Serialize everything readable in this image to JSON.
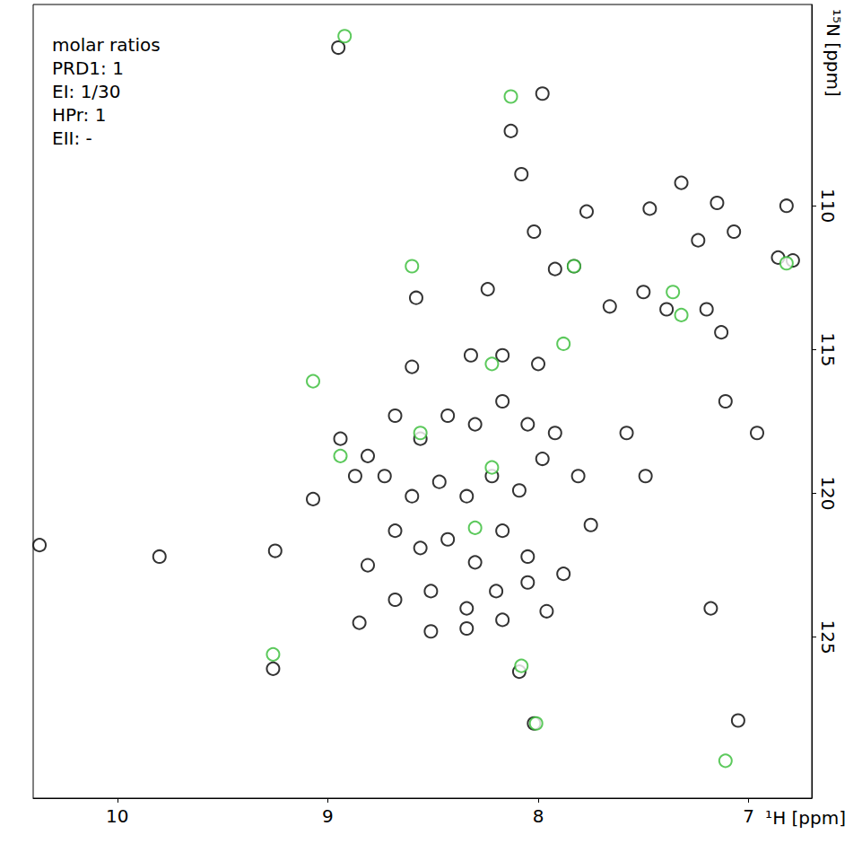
{
  "chart_data": {
    "type": "scatter",
    "annotations": [
      "molar ratios",
      "PRD1: 1",
      "EI: 1/30",
      "HPr: 1",
      "EII: -"
    ],
    "x_label": "¹H [ppm]",
    "y_label": "¹⁵N [ppm]",
    "xlim": [
      10.4,
      6.7
    ],
    "xticks": [
      10,
      9,
      8,
      7
    ],
    "ylim": [
      130.6,
      103
    ],
    "yticks": [
      110,
      115,
      120,
      125
    ],
    "grid": false,
    "marker": "circle",
    "series": [
      {
        "color": "#000000",
        "x": [
          8.95,
          7.98,
          8.13,
          8.08,
          8.02,
          8.24,
          7.92,
          7.77,
          7.47,
          7.32,
          7.15,
          7.24,
          7.07,
          6.86,
          7.5,
          7.39,
          7.66,
          7.83,
          6.82,
          6.79,
          7.2,
          7.13,
          8.58,
          8.6,
          8.32,
          8.17,
          8.0,
          8.94,
          8.87,
          8.81,
          8.68,
          8.56,
          8.43,
          8.3,
          8.17,
          8.05,
          7.98,
          8.73,
          8.6,
          8.47,
          8.34,
          8.22,
          8.09,
          8.68,
          8.56,
          8.43,
          8.3,
          8.17,
          8.05,
          8.81,
          8.68,
          8.51,
          8.34,
          8.2,
          8.05,
          8.51,
          8.34,
          8.17,
          8.85,
          9.07,
          9.25,
          9.8,
          10.37,
          7.92,
          7.81,
          7.75,
          7.88,
          7.96,
          7.58,
          7.49,
          7.11,
          6.96,
          7.18,
          9.26,
          8.09,
          8.02,
          7.05
        ],
        "y": [
          104.5,
          106.1,
          107.4,
          108.9,
          110.9,
          112.9,
          112.2,
          110.2,
          110.1,
          109.2,
          109.9,
          111.2,
          110.9,
          111.8,
          113.0,
          113.6,
          113.5,
          112.1,
          110.0,
          111.9,
          113.6,
          114.4,
          113.2,
          115.6,
          115.2,
          115.2,
          115.5,
          118.1,
          119.4,
          118.7,
          117.3,
          118.1,
          117.3,
          117.6,
          116.8,
          117.6,
          118.8,
          119.4,
          120.1,
          119.6,
          120.1,
          119.4,
          119.9,
          121.3,
          121.9,
          121.6,
          122.4,
          121.3,
          122.2,
          122.5,
          123.7,
          123.4,
          124.0,
          123.4,
          123.1,
          124.8,
          124.7,
          124.4,
          124.5,
          120.2,
          122.0,
          122.2,
          121.8,
          117.9,
          119.4,
          121.1,
          122.8,
          124.1,
          117.9,
          119.4,
          116.8,
          117.9,
          124.0,
          126.1,
          126.2,
          128.0,
          127.9
        ]
      },
      {
        "color": "#33bb33",
        "x": [
          9.07,
          8.08,
          8.01,
          7.11,
          6.82,
          7.83,
          7.36,
          7.32,
          9.26,
          8.94,
          8.56,
          8.6,
          8.22,
          8.22,
          8.3,
          7.88,
          8.13,
          8.92
        ],
        "y": [
          116.1,
          126.0,
          128.0,
          129.3,
          112.0,
          112.1,
          113.0,
          113.8,
          125.6,
          118.7,
          117.9,
          112.1,
          115.5,
          119.1,
          121.2,
          114.8,
          106.2,
          104.1
        ]
      }
    ]
  }
}
